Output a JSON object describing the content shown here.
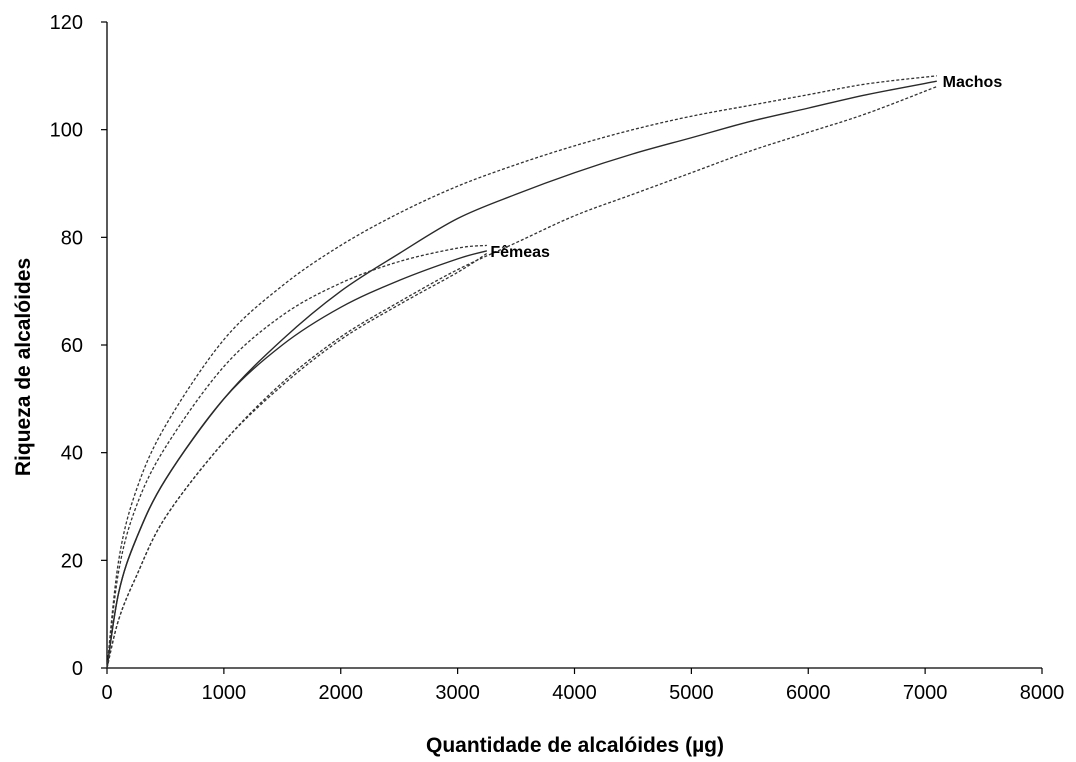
{
  "chart_data": {
    "type": "line",
    "xlabel": "Quantidade de alcalóides (µg)",
    "ylabel": "Riqueza de alcalóides",
    "xlim": [
      0,
      8000
    ],
    "ylim": [
      0,
      120
    ],
    "x_ticks": [
      0,
      1000,
      2000,
      3000,
      4000,
      5000,
      6000,
      7000,
      8000
    ],
    "y_ticks": [
      0,
      20,
      40,
      60,
      80,
      100,
      120
    ],
    "grid": false,
    "legend": "none",
    "series": [
      {
        "name": "Machos",
        "line_style": "solid",
        "x": [
          0,
          100,
          250,
          500,
          1000,
          1500,
          2000,
          2500,
          3000,
          3500,
          4000,
          4500,
          5000,
          5500,
          6000,
          6500,
          7100
        ],
        "y": [
          0,
          14,
          24,
          35,
          50,
          61,
          70,
          77,
          83.5,
          88,
          92,
          95.5,
          98.5,
          101.5,
          104,
          106.5,
          109
        ]
      },
      {
        "name": "Machos IC superior",
        "line_style": "dashed",
        "x": [
          0,
          100,
          250,
          500,
          1000,
          1500,
          2000,
          2500,
          3000,
          3500,
          4000,
          4500,
          5000,
          5500,
          6000,
          6500,
          7100
        ],
        "y": [
          0,
          20,
          33,
          45,
          61,
          71,
          78.5,
          84.5,
          89.5,
          93.5,
          97,
          100,
          102.5,
          104.5,
          106.5,
          108.5,
          110
        ]
      },
      {
        "name": "Machos IC inferior",
        "line_style": "dashed",
        "x": [
          0,
          100,
          250,
          500,
          1000,
          1500,
          2000,
          2500,
          3000,
          3500,
          4000,
          4500,
          5000,
          5500,
          6000,
          6500,
          7100
        ],
        "y": [
          0,
          9,
          17,
          28,
          42,
          53,
          61.5,
          68,
          74,
          79,
          84,
          88,
          92,
          96,
          99.5,
          103,
          108
        ]
      },
      {
        "name": "Fêmeas",
        "line_style": "solid",
        "x": [
          0,
          100,
          250,
          500,
          1000,
          1500,
          2000,
          2500,
          3000,
          3250
        ],
        "y": [
          0,
          14,
          24,
          35,
          50,
          60,
          67,
          72,
          76,
          77.5
        ]
      },
      {
        "name": "Fêmeas IC superior",
        "line_style": "dashed",
        "x": [
          0,
          100,
          250,
          500,
          1000,
          1500,
          2000,
          2500,
          3000,
          3250
        ],
        "y": [
          0,
          18,
          30,
          41,
          56,
          65.5,
          71.5,
          75.5,
          78,
          78.5
        ]
      },
      {
        "name": "Fêmeas IC inferior",
        "line_style": "dashed",
        "x": [
          0,
          100,
          250,
          500,
          1000,
          1500,
          2000,
          2500,
          3000,
          3250
        ],
        "y": [
          0,
          9,
          17,
          28,
          42,
          52.5,
          61,
          67.5,
          73.5,
          77
        ]
      }
    ],
    "labels": [
      {
        "text": "Machos",
        "x": 7150,
        "y": 109
      },
      {
        "text": "Fêmeas",
        "x": 3280,
        "y": 77.5
      }
    ]
  }
}
